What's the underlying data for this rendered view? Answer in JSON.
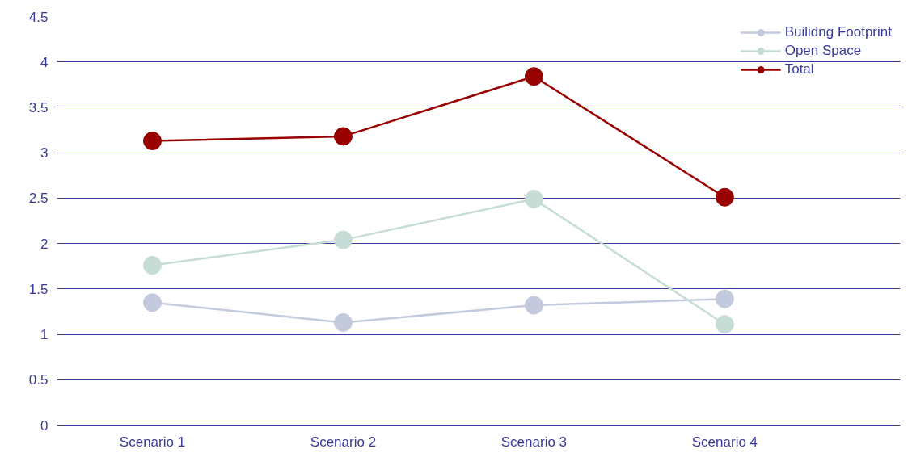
{
  "chart_data": {
    "type": "line",
    "categories": [
      "Scenario 1",
      "Scenario 2",
      "Scenario 3",
      "Scenario 4"
    ],
    "series": [
      {
        "name": "Builidng Footprint",
        "color": "#c3cadd",
        "values": [
          1.35,
          1.13,
          1.32,
          1.39
        ]
      },
      {
        "name": "Open Space",
        "color": "#c6dcd6",
        "values": [
          1.76,
          2.04,
          2.49,
          1.11
        ]
      },
      {
        "name": "Total",
        "color": "#990000",
        "values": [
          3.13,
          3.18,
          3.84,
          2.51
        ]
      }
    ],
    "ylim": [
      0,
      4.5
    ],
    "yticks": [
      0,
      0.5,
      1,
      1.5,
      2,
      2.5,
      3,
      3.5,
      4,
      4.5
    ],
    "grid": "y",
    "legend": "top right",
    "marker": "circle"
  }
}
